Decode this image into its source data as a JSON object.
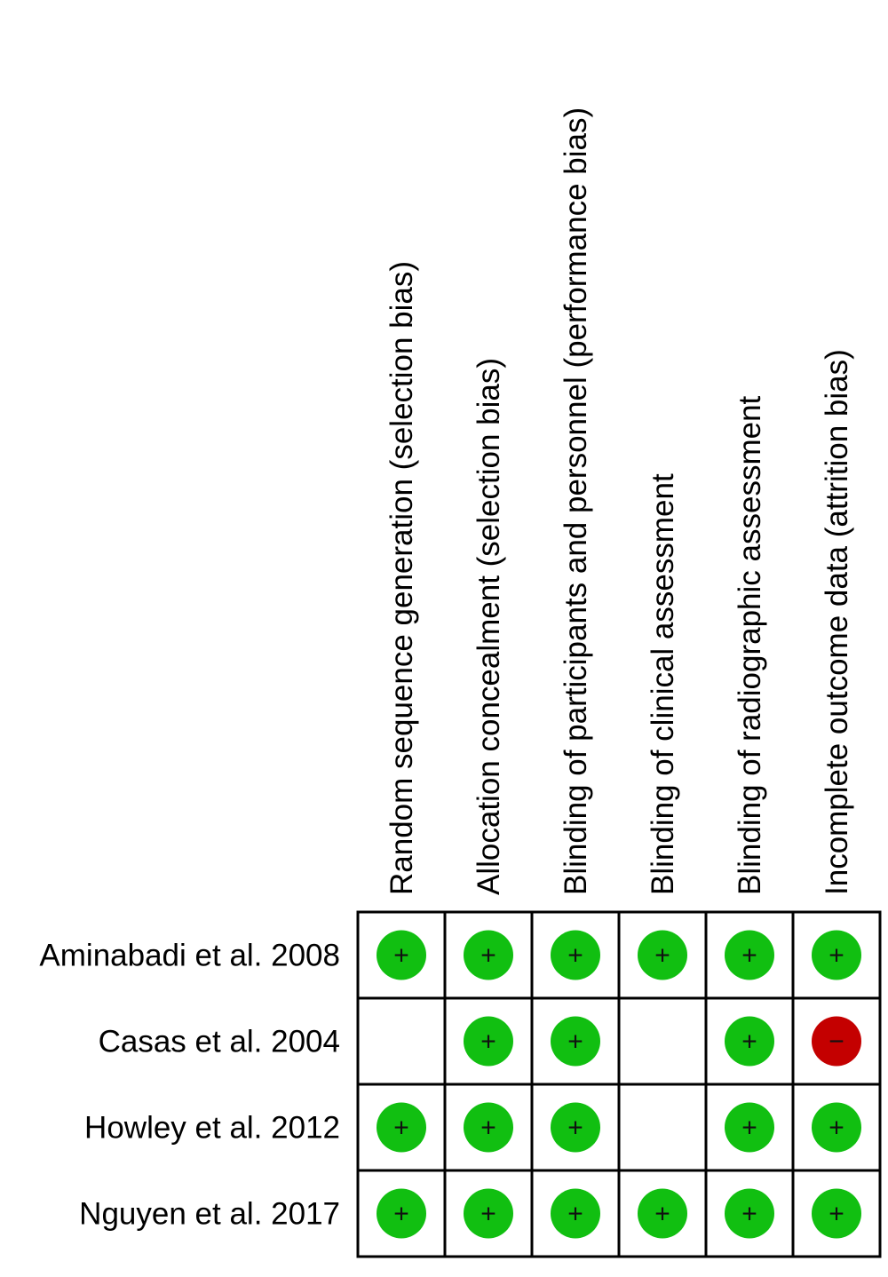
{
  "chart_data": {
    "type": "table",
    "columns": [
      "Random sequence generation (selection bias)",
      "Allocation concealment (selection bias)",
      "Blinding of participants and personnel (performance bias)",
      "Blinding of clinical assessment",
      "Blinding of radiographic assessment",
      "Incomplete outcome data (attrition bias)"
    ],
    "rows": [
      {
        "study": "Aminabadi et al. 2008",
        "judgements": [
          "low",
          "low",
          "low",
          "low",
          "low",
          "low"
        ]
      },
      {
        "study": "Casas et al. 2004",
        "judgements": [
          "",
          "low",
          "low",
          "",
          "low",
          "high"
        ]
      },
      {
        "study": "Howley et al. 2012",
        "judgements": [
          "low",
          "low",
          "low",
          "",
          "low",
          "low"
        ]
      },
      {
        "study": "Nguyen et al. 2017",
        "judgements": [
          "low",
          "low",
          "low",
          "low",
          "low",
          "low"
        ]
      }
    ],
    "symbols": {
      "low": {
        "glyph": "+",
        "color": "#11bf11",
        "icon": "plus-icon"
      },
      "high": {
        "glyph": "−",
        "color": "#c40000",
        "icon": "minus-icon"
      }
    }
  }
}
